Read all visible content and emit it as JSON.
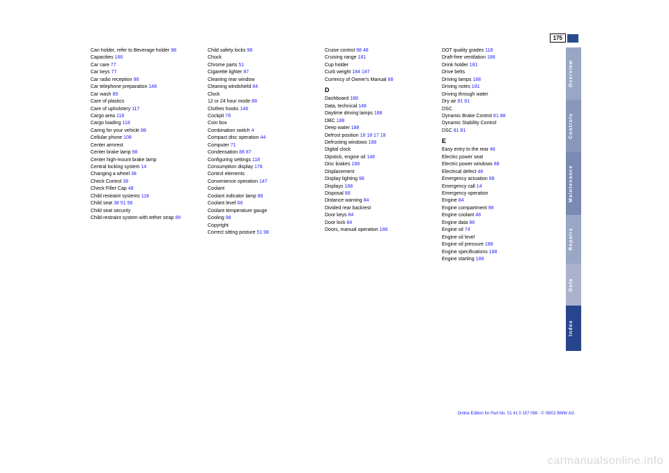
{
  "page_number": "175",
  "sidebar": {
    "tabs": [
      {
        "label": "Overview"
      },
      {
        "label": "Controls"
      },
      {
        "label": "Maintenance"
      },
      {
        "label": "Repairs"
      },
      {
        "label": "Data"
      },
      {
        "label": "Index"
      }
    ]
  },
  "footer": "Online Edition for Part No. 01 41 0 157 098 - © 08/02 BMW AG",
  "watermark": "carmanualsonline.info",
  "colors": {
    "link": "#1a1af5",
    "text": "#000000",
    "accent": "#2a4b8d",
    "tab_dark": "#28448c",
    "tab_mid": "#7a8ab3",
    "tab_light": "#9aa6c4",
    "tab_lighter": "#aab3cc",
    "watermark": "#d8d8d8"
  },
  "columns": [
    [
      {
        "t": "Can holder, refer to Beverage holder",
        "r": "98"
      },
      {
        "t": "Capacities",
        "r": "166"
      },
      {
        "t": "Car care",
        "r": "77"
      },
      {
        "t": "Car keys",
        "r": "77"
      },
      {
        "t": "Car radio reception",
        "r": "98"
      },
      {
        "t": "Car telephone preparation",
        "r": "148"
      },
      {
        "t": "Car wash",
        "r": "89"
      },
      {
        "t": "Care of plastics",
        "r": ""
      },
      {
        "t": "Care of upholstery",
        "r": "117"
      },
      {
        "t": "Cargo area",
        "r": "118"
      },
      {
        "t": "Cargo loading",
        "r": "118"
      },
      {
        "t": "Caring for your vehicle",
        "r": "88"
      },
      {
        "t": "Cellular phone",
        "r": "108"
      },
      {
        "t": "Center armrest",
        "r": ""
      },
      {
        "t": "Center brake lamp",
        "r": "98"
      },
      {
        "t": "Center high-mount brake lamp",
        "r": ""
      },
      {
        "t": "Central locking system",
        "r": "14"
      },
      {
        "t": "Changing a wheel",
        "r": "38"
      },
      {
        "t": "Check Control",
        "r": "38"
      },
      {
        "t": "Check Filler Cap",
        "r": "48"
      },
      {
        "t": "Child restraint systems",
        "r": "118"
      },
      {
        "t": "Child seat",
        "r": "38 51 58"
      },
      {
        "t": "Child seat security",
        "r": ""
      },
      {
        "t": "Child-restraint system with tether strap",
        "r": "89"
      }
    ],
    [
      {
        "t": "Child safety locks",
        "r": "98"
      },
      {
        "t": "Chock",
        "r": ""
      },
      {
        "t": "Chrome parts",
        "r": "51"
      },
      {
        "t": "Cigarette lighter",
        "r": "87"
      },
      {
        "t": "Cleaning rear window",
        "r": ""
      },
      {
        "t": "Cleaning windshield",
        "r": "84"
      },
      {
        "t": "Clock",
        "r": ""
      },
      {
        "t": "12 or 24 hour mode",
        "r": "88"
      },
      {
        "t": "Clothes hooks",
        "r": "148"
      },
      {
        "t": "Cockpit",
        "r": "78"
      },
      {
        "t": "Coin box",
        "r": ""
      },
      {
        "t": "Combination switch",
        "r": "4"
      },
      {
        "t": "Compact disc operation",
        "r": "44"
      },
      {
        "t": "Computer",
        "r": "71"
      },
      {
        "t": "Condensation",
        "r": "88 87"
      },
      {
        "t": "Configuring settings",
        "r": "118"
      },
      {
        "t": "Consumption display",
        "r": "178"
      },
      {
        "t": "Control elements",
        "r": ""
      },
      {
        "t": "Convenience operation",
        "r": "147"
      },
      {
        "t": "Coolant",
        "r": ""
      },
      {
        "t": "Coolant indicator lamp",
        "r": "88"
      },
      {
        "t": "Coolant level",
        "r": "68"
      },
      {
        "t": "Coolant temperature gauge",
        "r": ""
      },
      {
        "t": "Cooling",
        "r": "98"
      },
      {
        "t": "Copyright",
        "r": ""
      },
      {
        "t": "Correct sitting posture",
        "r": "51 98"
      }
    ],
    [
      {
        "t": "Cruise control",
        "r": "98 48"
      },
      {
        "t": "Cruising range",
        "r": "181"
      },
      {
        "t": "Cup holder",
        "r": ""
      },
      {
        "t": "Curb weight",
        "r": "184 187"
      },
      {
        "t": "Currency of Owner's Manual",
        "r": "88"
      },
      {
        "t": "sect",
        "l": "D"
      },
      {
        "t": "Dashboard",
        "r": "188"
      },
      {
        "t": "Data, technical",
        "r": "148"
      },
      {
        "t": "Daytime driving lamps",
        "r": "188"
      },
      {
        "t": "DBC",
        "r": "188"
      },
      {
        "t": "Deep water",
        "r": "188"
      },
      {
        "t": "Defrost position",
        "r": "18 18 17 18"
      },
      {
        "t": "Defrosting windows",
        "r": "188"
      },
      {
        "t": "Digital clock",
        "r": ""
      },
      {
        "t": "Dipstick, engine oil",
        "r": "148"
      },
      {
        "t": "Disc brakes",
        "r": "188"
      },
      {
        "t": "Displacement",
        "r": ""
      },
      {
        "t": "Display lighting",
        "r": "98"
      },
      {
        "t": "Displays",
        "r": "188"
      },
      {
        "t": "Disposal",
        "r": "88"
      },
      {
        "t": "Distance warning",
        "r": "84"
      },
      {
        "t": "Divided rear backrest",
        "r": ""
      },
      {
        "t": "Door keys",
        "r": "84"
      },
      {
        "t": "Door lock",
        "r": "84"
      },
      {
        "t": "Doors, manual operation",
        "r": "188"
      }
    ],
    [
      {
        "t": "DOT quality grades",
        "r": "118"
      },
      {
        "t": "Draft-free ventilation",
        "r": "188"
      },
      {
        "t": "Drink holder",
        "r": "181"
      },
      {
        "t": "Drive belts",
        "r": ""
      },
      {
        "t": "Driving lamps",
        "r": "188"
      },
      {
        "t": "Driving notes",
        "r": "181"
      },
      {
        "t": "Driving through water",
        "r": ""
      },
      {
        "t": "Dry air",
        "r": "81 81"
      },
      {
        "t": "DSC",
        "r": ""
      },
      {
        "t": "Dynamic Brake Control",
        "r": "81 88"
      },
      {
        "t": "Dynamic Stability Control",
        "r": ""
      },
      {
        "t": "DSC",
        "r": "81 81"
      },
      {
        "t": "sect",
        "l": "E"
      },
      {
        "t": "Easy entry to the rear",
        "r": "48"
      },
      {
        "t": "Electric power seat",
        "r": ""
      },
      {
        "t": "Electric power windows",
        "r": "88"
      },
      {
        "t": "Electrical defect",
        "r": "48"
      },
      {
        "t": "Emergency actuation",
        "r": "88"
      },
      {
        "t": "Emergency call",
        "r": "14"
      },
      {
        "t": "Emergency operation",
        "r": ""
      },
      {
        "t": "Engine",
        "r": "84"
      },
      {
        "t": "Engine compartment",
        "r": "98"
      },
      {
        "t": "Engine coolant",
        "r": "48"
      },
      {
        "t": "Engine data",
        "r": "88"
      },
      {
        "t": "Engine oil",
        "r": "74"
      },
      {
        "t": "Engine oil level",
        "r": ""
      },
      {
        "t": "Engine oil pressure",
        "r": "188"
      },
      {
        "t": "Engine specifications",
        "r": "188"
      },
      {
        "t": "Engine starting",
        "r": "188"
      }
    ]
  ]
}
